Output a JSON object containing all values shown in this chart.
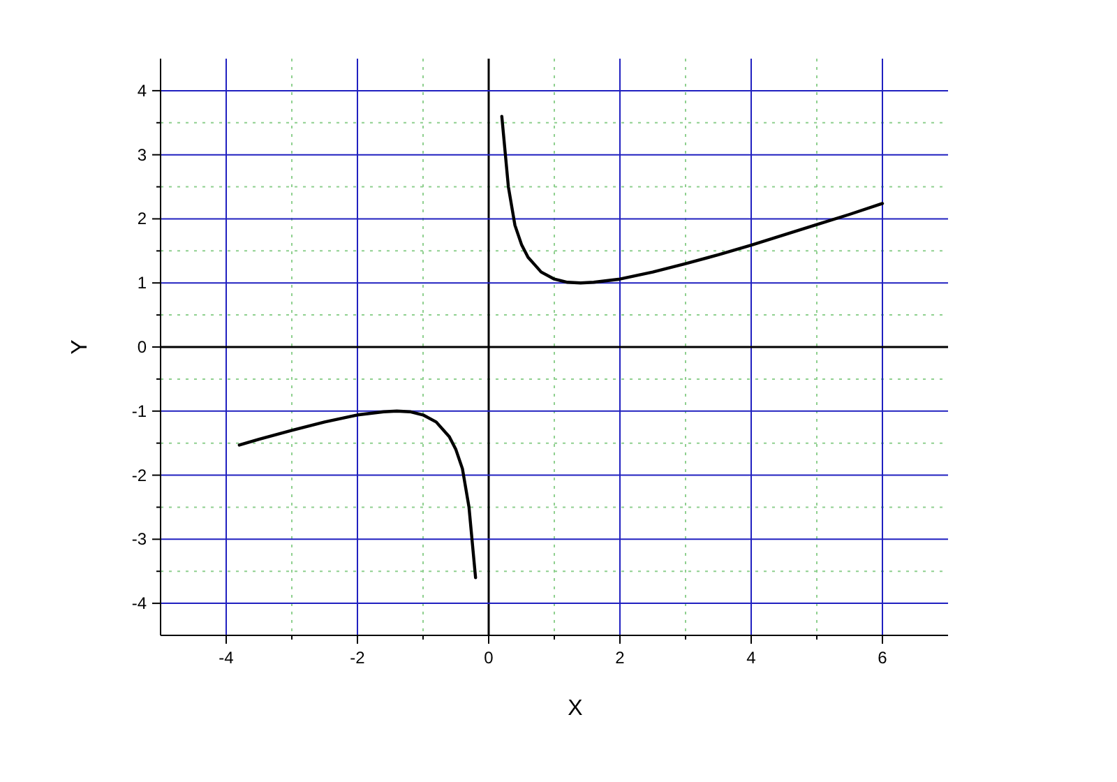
{
  "chart_data": {
    "type": "line",
    "xlabel": "X",
    "ylabel": "Y",
    "xlim": [
      -5,
      7
    ],
    "ylim": [
      -4.5,
      4.5
    ],
    "xticks": [
      -4,
      {
        "value": -3,
        "label": null
      },
      -2,
      {
        "value": -1,
        "label": null
      },
      0,
      {
        "value": 1,
        "label": null
      },
      2,
      {
        "value": 3,
        "label": null
      },
      4,
      {
        "value": 5,
        "label": null
      },
      6
    ],
    "yticks": [
      -4,
      {
        "value": -3.5,
        "label": null
      },
      -3,
      {
        "value": -2.5,
        "label": null
      },
      -2,
      {
        "value": -1.5,
        "label": null
      },
      -1,
      {
        "value": -0.5,
        "label": null
      },
      0,
      {
        "value": 0.5,
        "label": null
      },
      1,
      {
        "value": 1.5,
        "label": null
      },
      2,
      {
        "value": 2.5,
        "label": null
      },
      3,
      {
        "value": 3.5,
        "label": null
      },
      4
    ],
    "grid": true,
    "series": [
      {
        "color": "#000000",
        "x": [
          -3.8,
          -3.5,
          -3,
          -2.5,
          -2,
          -1.6,
          -1.4,
          -1.2,
          -1,
          -0.8,
          -0.6,
          -0.5,
          -0.4,
          -0.3,
          -0.2
        ],
        "values": [
          -1.53,
          -1.44,
          -1.3,
          -1.17,
          -1.06,
          -1.01,
          -1.0,
          -1.01,
          -1.06,
          -1.17,
          -1.4,
          -1.6,
          -1.9,
          -2.5,
          -3.6
        ]
      },
      {
        "color": "#000000",
        "x": [
          0.2,
          0.3,
          0.4,
          0.5,
          0.6,
          0.8,
          1,
          1.2,
          1.4,
          1.6,
          2,
          2.5,
          3,
          3.5,
          4,
          4.5,
          5,
          5.5,
          6
        ],
        "values": [
          3.6,
          2.5,
          1.9,
          1.6,
          1.4,
          1.17,
          1.06,
          1.01,
          1.0,
          1.01,
          1.06,
          1.17,
          1.3,
          1.44,
          1.59,
          1.75,
          1.91,
          2.07,
          2.24
        ]
      }
    ]
  }
}
